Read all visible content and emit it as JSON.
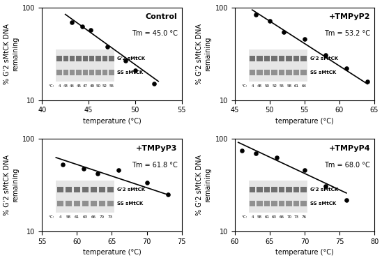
{
  "chart_data": [
    {
      "type": "scatter",
      "title": "Control",
      "x_label": "temperature (°C)",
      "y_label": "% G'2 sMtCK DNA\nremaining",
      "annotations": [
        "Tm = 45.0 °C"
      ],
      "log": "y",
      "xlim": [
        40,
        55
      ],
      "xticks": [
        40,
        45,
        50,
        55
      ],
      "ylim": [
        10,
        100
      ],
      "yticks": [
        10,
        100
      ],
      "series": [
        {
          "type": "scatter",
          "marker": "o",
          "color": "#000000",
          "x": [
            43.2,
            44.3,
            45.2,
            47.0,
            49.0,
            50.0,
            52.0
          ],
          "values": [
            70,
            63,
            58,
            38,
            27,
            21,
            15
          ]
        },
        {
          "type": "line",
          "line_style": "solid",
          "color": "#000000",
          "x": [
            42.5,
            52.5
          ],
          "values": [
            85,
            16
          ]
        }
      ],
      "gel": {
        "prefix": "°C:",
        "lanes": [
          4,
          43,
          44,
          45,
          47,
          49,
          50,
          52,
          55
        ],
        "bands": [
          "G'2 sMtCK",
          "SS sMtCK"
        ]
      }
    },
    {
      "type": "scatter",
      "title": "+TMPyP2",
      "x_label": "temperature (°C)",
      "y_label": "% G'2 sMtCK DNA\nremaining",
      "annotations": [
        "Tm = 53.2 °C"
      ],
      "log": "y",
      "xlim": [
        45,
        65
      ],
      "xticks": [
        45,
        50,
        55,
        60,
        65
      ],
      "ylim": [
        10,
        100
      ],
      "yticks": [
        10,
        100
      ],
      "series": [
        {
          "type": "scatter",
          "marker": "o",
          "color": "#000000",
          "x": [
            48,
            50,
            52,
            55,
            58,
            61,
            64
          ],
          "values": [
            85,
            72,
            55,
            46,
            31,
            22,
            16
          ]
        },
        {
          "type": "line",
          "line_style": "solid",
          "color": "#000000",
          "x": [
            47.5,
            64
          ],
          "values": [
            95,
            15
          ]
        }
      ],
      "gel": {
        "prefix": "°C:",
        "lanes": [
          4,
          48,
          50,
          52,
          55,
          58,
          61,
          64
        ],
        "bands": [
          "G'2 sMtCK",
          "SS sMtCK"
        ]
      }
    },
    {
      "type": "scatter",
      "title": "+TMPyP3",
      "x_label": "temperature (°C)",
      "y_label": "% G'2 sMtCK DNA\nremaining",
      "annotations": [
        "Tm = 61.8 °C"
      ],
      "log": "y",
      "xlim": [
        55,
        75
      ],
      "xticks": [
        55,
        60,
        65,
        70,
        75
      ],
      "ylim": [
        10,
        100
      ],
      "yticks": [
        10,
        100
      ],
      "series": [
        {
          "type": "scatter",
          "marker": "o",
          "color": "#000000",
          "x": [
            58,
            61,
            63,
            66,
            70,
            73
          ],
          "values": [
            53,
            48,
            42,
            46,
            34,
            25
          ]
        },
        {
          "type": "line",
          "line_style": "solid",
          "color": "#000000",
          "x": [
            57,
            73
          ],
          "values": [
            63,
            25
          ]
        }
      ],
      "gel": {
        "prefix": "°C:",
        "lanes": [
          4,
          58,
          61,
          63,
          66,
          70,
          73
        ],
        "bands": [
          "G'2 sMtCK",
          "SS sMtCK"
        ]
      }
    },
    {
      "type": "scatter",
      "title": "+TMPyP4",
      "x_label": "temperature (°C)",
      "y_label": "% G'2 sMtCK DNA\nremaining",
      "annotations": [
        "Tm = 68.0 °C"
      ],
      "log": "y",
      "xlim": [
        60,
        80
      ],
      "xticks": [
        60,
        65,
        70,
        75,
        80
      ],
      "ylim": [
        10,
        100
      ],
      "yticks": [
        10,
        100
      ],
      "series": [
        {
          "type": "scatter",
          "marker": "o",
          "color": "#000000",
          "x": [
            61,
            63,
            66,
            70,
            73,
            76
          ],
          "values": [
            75,
            70,
            63,
            46,
            31,
            22
          ]
        },
        {
          "type": "line",
          "line_style": "solid",
          "color": "#000000",
          "x": [
            60.5,
            76
          ],
          "values": [
            92,
            26
          ]
        }
      ],
      "gel": {
        "prefix": "°C:",
        "lanes": [
          4,
          58,
          61,
          63,
          66,
          70,
          73,
          76
        ],
        "bands": [
          "G'2 sMtCK",
          "SS sMtCK"
        ]
      }
    }
  ]
}
